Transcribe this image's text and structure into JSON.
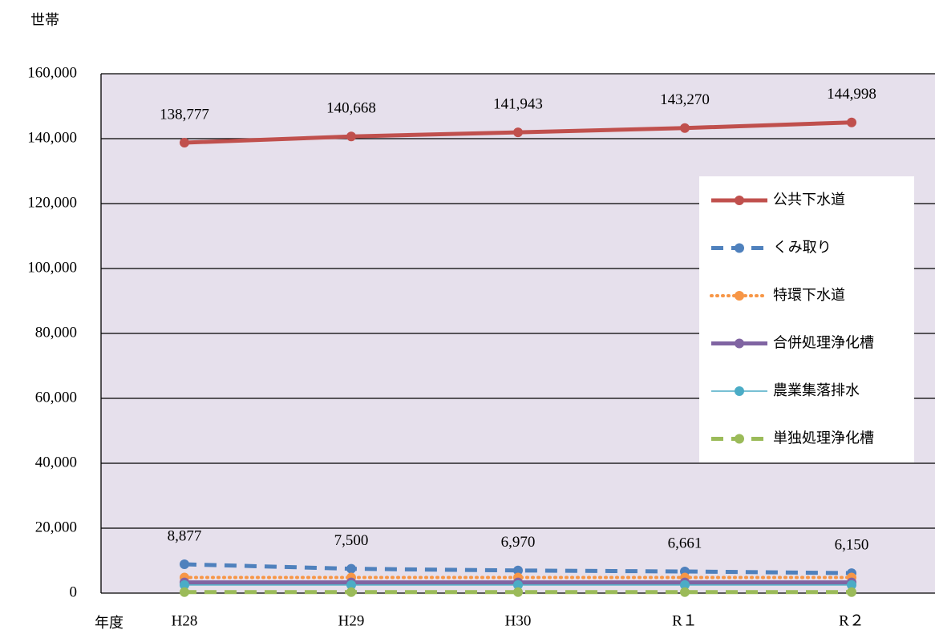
{
  "chart_data": {
    "type": "line",
    "y_label": "世帯",
    "x_label": "年度",
    "categories": [
      "H28",
      "H29",
      "H30",
      "R１",
      "R２"
    ],
    "ylim": [
      0,
      160000
    ],
    "yticks": [
      0,
      {
        "value": 20000,
        "label": "20,000"
      },
      {
        "value": 40000,
        "label": "40,000"
      },
      {
        "value": 60000,
        "label": "60,000"
      },
      {
        "value": 80000,
        "label": "80,000"
      },
      {
        "value": 100000,
        "label": "100,000"
      },
      {
        "value": 120000,
        "label": "120,000"
      },
      {
        "value": 140000,
        "label": "140,000"
      },
      {
        "value": 160000,
        "label": "160,000"
      }
    ],
    "grid": true,
    "legend": "right",
    "series": [
      {
        "name": "公共下水道",
        "color": "#c0504d",
        "line_style": "solid",
        "line_width": 5,
        "values": [
          138777,
          140668,
          141943,
          143270,
          144998
        ],
        "value_labels": [
          "138,777",
          "140,668",
          "141,943",
          "143,270",
          "144,998"
        ]
      },
      {
        "name": "くみ取り",
        "color": "#4f81bd",
        "line_style": "dashed",
        "line_width": 5,
        "values": [
          8877,
          7500,
          6970,
          6661,
          6150
        ],
        "value_labels": [
          "8,877",
          "7,500",
          "6,970",
          "6,661",
          "6,150"
        ]
      },
      {
        "name": "特環下水道",
        "color": "#f79646",
        "line_style": "dotted",
        "line_width": 4,
        "values": [
          4800,
          4800,
          4800,
          4800,
          4800
        ]
      },
      {
        "name": "合併処理浄化槽",
        "color": "#8064a2",
        "line_style": "solid",
        "line_width": 5,
        "values": [
          3300,
          3300,
          3300,
          3300,
          3300
        ]
      },
      {
        "name": "農業集落排水",
        "color": "#4bacc6",
        "line_style": "solid",
        "line_width": 1.5,
        "values": [
          2500,
          2500,
          2500,
          2500,
          2500
        ]
      },
      {
        "name": "単独処理浄化槽",
        "color": "#9bbb59",
        "line_style": "dashed",
        "line_width": 5,
        "values": [
          300,
          300,
          300,
          300,
          300
        ]
      }
    ]
  }
}
